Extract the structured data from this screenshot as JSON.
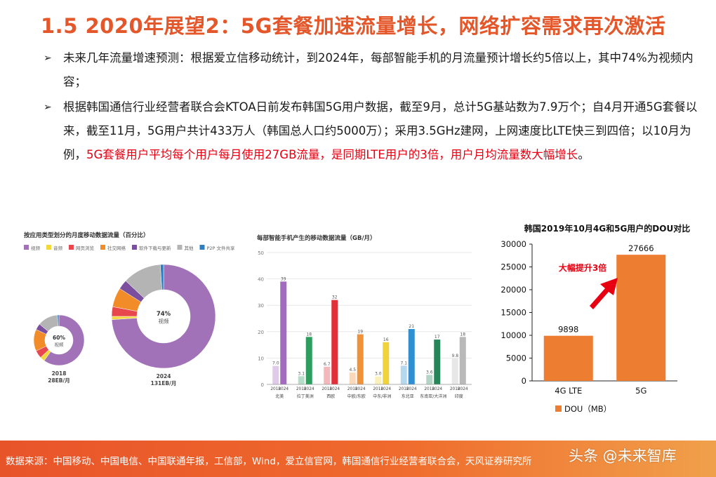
{
  "title": "1.5 2020年展望2：5G套餐加速流量增长，网络扩容需求再次激活",
  "bullets": [
    {
      "mark": "➢",
      "text": "未来几年流量增速预测：根据爱立信移动统计，到2024年，每部智能手机的月流量预计增长约5倍以上，其中74%为视频内容；"
    },
    {
      "mark": "➢",
      "text_pre": "根据韩国通信行业经营者联合会KTOA日前发布韩国5G用户数据，截至9月，总计5G基站数为7.9万个；自4月开通5G套餐以来，截至11月，5G用户共计433万人（韩国总人口约5000万）；采用3.5GHz建网，上网速度比LTE快三到四倍；以10月为例，",
      "text_hl": "5G套餐用户平均每个用户每月使用27GB流量，是同期LTE用户的3倍，用户月均流量数大幅增长",
      "text_post": "。"
    }
  ],
  "colors": {
    "title": "#e4572a",
    "highlight": "#e60012",
    "bar_orange": "#ed7d31"
  },
  "chart_data": [
    {
      "type": "pie",
      "title": "按应用类型划分的月度移动数据流量（百分比）",
      "legend": [
        "视频",
        "音频",
        "网页浏览",
        "社交网络",
        "软件下载与更新",
        "其他",
        "P2P 文件共享"
      ],
      "legend_colors": [
        "#a272b8",
        "#f2d83b",
        "#e8484d",
        "#f28c28",
        "#7b4f9e",
        "#b4b4b4",
        "#2f7fc1"
      ],
      "donuts": [
        {
          "year": "2018",
          "total": "28EB/月",
          "center_pct": "60%",
          "center_label": "视频",
          "shares": [
            60,
            3,
            5,
            14,
            4,
            13,
            1
          ]
        },
        {
          "year": "2024",
          "total": "131EB/月",
          "center_pct": "74%",
          "center_label": "视频",
          "shares": [
            74,
            1,
            3,
            6,
            3,
            12,
            1
          ]
        }
      ]
    },
    {
      "type": "bar",
      "title": "每部智能手机产生的移动数据流量（GB/月）",
      "ylim": [
        0,
        50
      ],
      "yticks": [
        0,
        10,
        20,
        30,
        40,
        50
      ],
      "regions": [
        {
          "name": "北美",
          "v2018": 7.0,
          "v2024": 39,
          "l2018": "7.0",
          "l2024": "39",
          "color": "#a26bbf"
        },
        {
          "name": "拉丁美洲",
          "v2018": 3.1,
          "v2024": 18,
          "l2018": "3.1",
          "l2024": "18",
          "color": "#2e9e5e"
        },
        {
          "name": "西欧",
          "v2018": 6.7,
          "v2024": 32,
          "l2018": "6.7",
          "l2024": "32",
          "color": "#e0303a"
        },
        {
          "name": "中欧/东欧",
          "v2018": 4.5,
          "v2024": 19,
          "l2018": "4.5",
          "l2024": "19",
          "color": "#f0923a"
        },
        {
          "name": "中东/非洲",
          "v2018": 3.0,
          "v2024": 16,
          "l2018": "3.0",
          "l2024": "16",
          "color": "#f0d33a"
        },
        {
          "name": "东北亚",
          "v2018": 7.1,
          "v2024": 21,
          "l2018": "7.1",
          "l2024": "21",
          "color": "#2f8fd0"
        },
        {
          "name": "东南亚/大洋洲",
          "v2018": 3.6,
          "v2024": 17,
          "l2018": "3.6",
          "l2024": "17",
          "color": "#27855a"
        },
        {
          "name": "印度",
          "v2018": 9.8,
          "v2024": 18,
          "l2018": "9.8",
          "l2024": "18",
          "color": "#b9b9b9"
        }
      ],
      "year_labels": [
        "2018",
        "2024"
      ]
    },
    {
      "type": "bar",
      "title": "韩国2019年10月4G和5G用户的DOU对比",
      "categories": [
        "4G LTE",
        "5G"
      ],
      "values": [
        9898,
        27666
      ],
      "value_labels": [
        "9898",
        "27666"
      ],
      "ylim": [
        0,
        30000
      ],
      "yticks": [
        "0",
        "5000",
        "10000",
        "15000",
        "20000",
        "25000",
        "30000"
      ],
      "legend": "DOU（MB）",
      "annotation": "大幅提升3倍",
      "color": "#ed7d31"
    }
  ],
  "footer": {
    "source": "数据来源：中国移动、中国电信、中国联通年报，工信部，Wind，爱立信官网，韩国通信行业经营者联合会，天风证券研究所",
    "watermark": "头条 @未来智库"
  }
}
